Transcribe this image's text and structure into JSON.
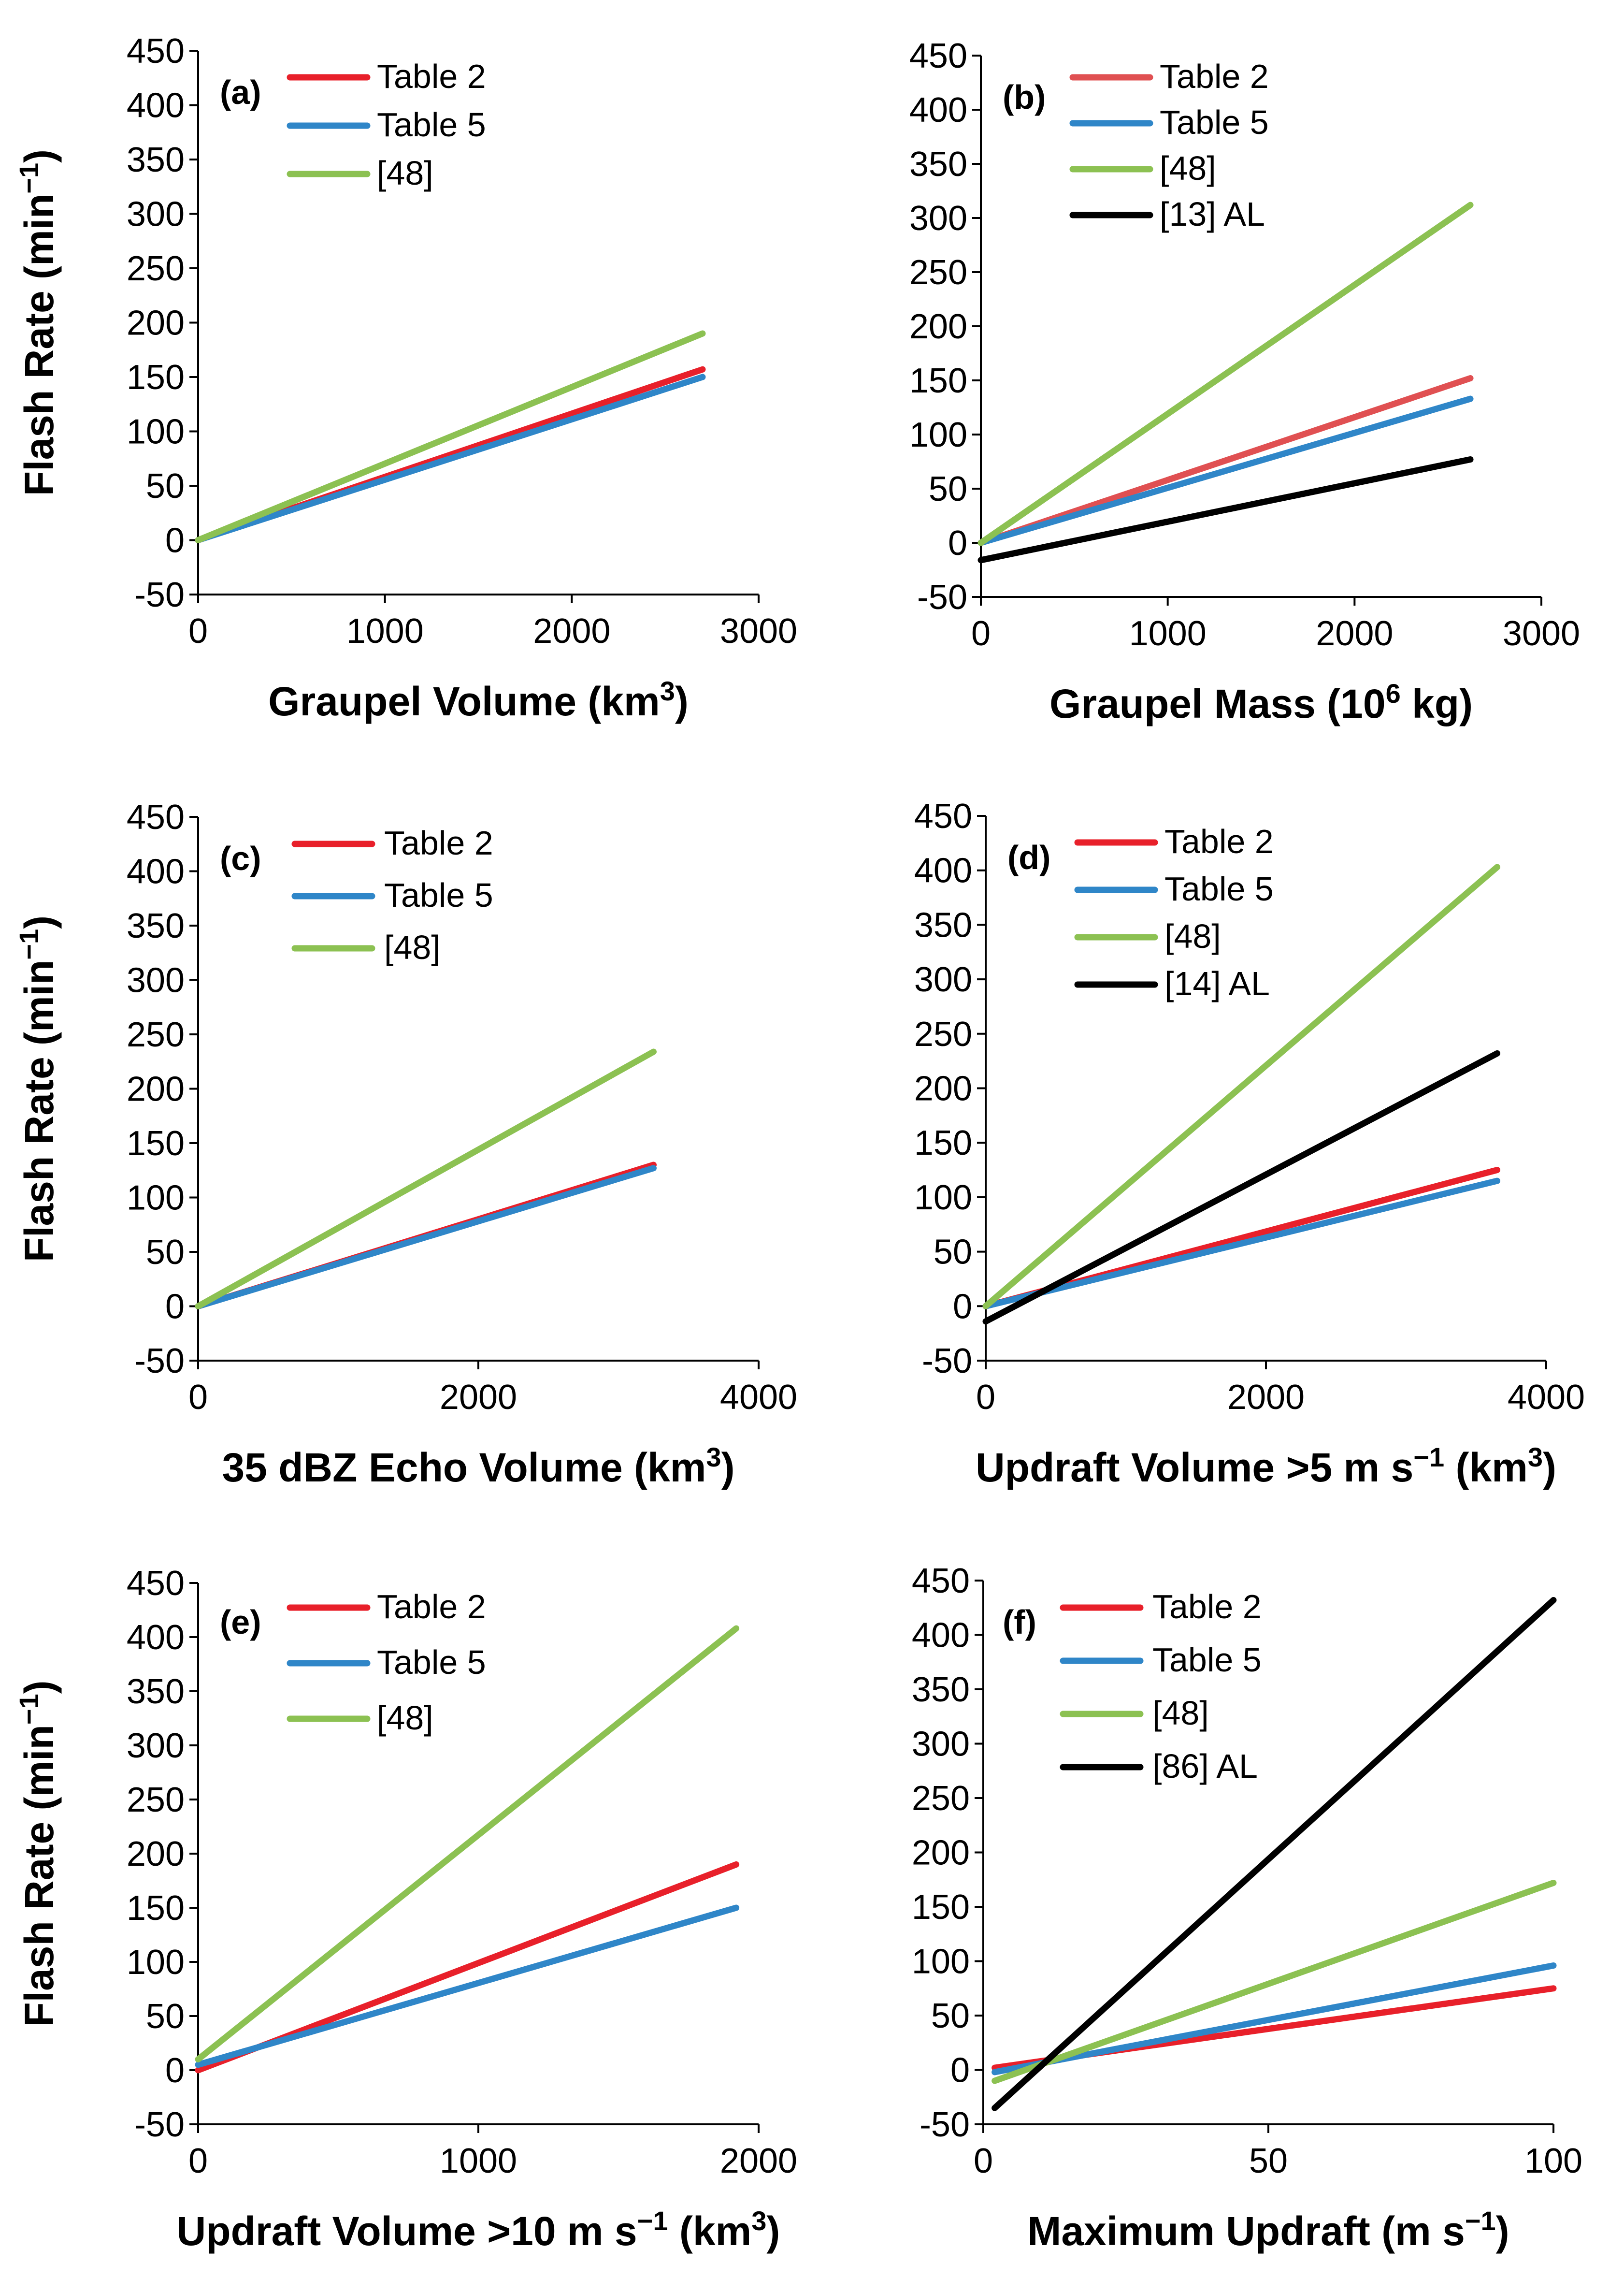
{
  "chart_data": [
    {
      "type": "line",
      "panel": "(a)",
      "title": "",
      "xlabel_main": "Graupel Volume (km",
      "xlabel_sup": "3",
      "xlabel_end": ")",
      "ylabel_main": "Flash Rate (min",
      "ylabel_sup": "−1",
      "ylabel_end": ")",
      "xlim": [
        0,
        3000
      ],
      "ylim": [
        -50,
        450
      ],
      "xticks": [
        0,
        1000,
        2000,
        3000
      ],
      "yticks": [
        -50,
        0,
        50,
        100,
        150,
        200,
        250,
        300,
        350,
        400,
        450
      ],
      "series": [
        {
          "name": "Table 2",
          "color": "#e8202a",
          "x": [
            0,
            2700
          ],
          "y": [
            0,
            157
          ]
        },
        {
          "name": "Table 5",
          "color": "#2f86c8",
          "x": [
            0,
            2700
          ],
          "y": [
            0,
            150
          ]
        },
        {
          "name": "[48]",
          "color": "#8cc152",
          "x": [
            0,
            2700
          ],
          "y": [
            0,
            190
          ]
        }
      ]
    },
    {
      "type": "line",
      "panel": "(b)",
      "title": "",
      "xlabel_main": "Graupel Mass (10",
      "xlabel_sup": "6",
      "xlabel_end": " kg)",
      "ylabel_main": "",
      "ylabel_sup": "",
      "ylabel_end": "",
      "xlim": [
        0,
        3000
      ],
      "ylim": [
        -50,
        450
      ],
      "xticks": [
        0,
        1000,
        2000,
        3000
      ],
      "yticks": [
        -50,
        0,
        50,
        100,
        150,
        200,
        250,
        300,
        350,
        400,
        450
      ],
      "series": [
        {
          "name": "Table 2",
          "color": "#e05052",
          "x": [
            0,
            2620
          ],
          "y": [
            0,
            152
          ]
        },
        {
          "name": "Table 5",
          "color": "#2f86c8",
          "x": [
            0,
            2620
          ],
          "y": [
            0,
            133
          ]
        },
        {
          "name": "[48]",
          "color": "#8cc152",
          "x": [
            0,
            2620
          ],
          "y": [
            0,
            312
          ]
        },
        {
          "name": "[13] AL",
          "color": "#000000",
          "x": [
            0,
            2620
          ],
          "y": [
            -16,
            77
          ]
        }
      ]
    },
    {
      "type": "line",
      "panel": "(c)",
      "title": "",
      "xlabel_main": "35 dBZ Echo Volume (km",
      "xlabel_sup": "3",
      "xlabel_end": ")",
      "ylabel_main": "Flash Rate (min",
      "ylabel_sup": "−1",
      "ylabel_end": ")",
      "xlim": [
        0,
        4000
      ],
      "ylim": [
        -50,
        450
      ],
      "xticks": [
        0,
        2000,
        4000
      ],
      "yticks": [
        -50,
        0,
        50,
        100,
        150,
        200,
        250,
        300,
        350,
        400,
        450
      ],
      "series": [
        {
          "name": "Table 2",
          "color": "#e8202a",
          "x": [
            0,
            3250
          ],
          "y": [
            0,
            130
          ]
        },
        {
          "name": "Table 5",
          "color": "#2f86c8",
          "x": [
            0,
            3250
          ],
          "y": [
            0,
            127
          ]
        },
        {
          "name": "[48]",
          "color": "#8cc152",
          "x": [
            0,
            3250
          ],
          "y": [
            0,
            234
          ]
        }
      ]
    },
    {
      "type": "line",
      "panel": "(d)",
      "title": "",
      "xlabel_main": "Updraft Volume >5 m s",
      "xlabel_sup": "−1",
      "xlabel_end": " (km",
      "xlabel_sup2": "3",
      "xlabel_end2": ")",
      "ylabel_main": "",
      "ylabel_sup": "",
      "ylabel_end": "",
      "xlim": [
        0,
        4000
      ],
      "ylim": [
        -50,
        450
      ],
      "xticks": [
        0,
        2000,
        4000
      ],
      "yticks": [
        -50,
        0,
        50,
        100,
        150,
        200,
        250,
        300,
        350,
        400,
        450
      ],
      "series": [
        {
          "name": "Table 2",
          "color": "#e8202a",
          "x": [
            0,
            3650
          ],
          "y": [
            0,
            125
          ]
        },
        {
          "name": "Table 5",
          "color": "#2f86c8",
          "x": [
            0,
            3650
          ],
          "y": [
            0,
            115
          ]
        },
        {
          "name": "[48]",
          "color": "#8cc152",
          "x": [
            0,
            3650
          ],
          "y": [
            0,
            403
          ]
        },
        {
          "name": "[14] AL",
          "color": "#000000",
          "x": [
            0,
            3650
          ],
          "y": [
            -14,
            232
          ]
        }
      ]
    },
    {
      "type": "line",
      "panel": "(e)",
      "title": "",
      "xlabel_main": "Updraft Volume >10 m s",
      "xlabel_sup": "−1",
      "xlabel_end": " (km",
      "xlabel_sup2": "3",
      "xlabel_end2": ")",
      "ylabel_main": "Flash Rate (min",
      "ylabel_sup": "−1",
      "ylabel_end": ")",
      "xlim": [
        0,
        2000
      ],
      "ylim": [
        -50,
        450
      ],
      "xticks": [
        0,
        1000,
        2000
      ],
      "yticks": [
        -50,
        0,
        50,
        100,
        150,
        200,
        250,
        300,
        350,
        400,
        450
      ],
      "series": [
        {
          "name": "Table 2",
          "color": "#e8202a",
          "x": [
            0,
            1920
          ],
          "y": [
            0,
            190
          ]
        },
        {
          "name": "Table 5",
          "color": "#2f86c8",
          "x": [
            0,
            1920
          ],
          "y": [
            5,
            150
          ]
        },
        {
          "name": "[48]",
          "color": "#8cc152",
          "x": [
            0,
            1920
          ],
          "y": [
            10,
            408
          ]
        }
      ]
    },
    {
      "type": "line",
      "panel": "(f)",
      "title": "",
      "xlabel_main": "Maximum Updraft (m s",
      "xlabel_sup": "−1",
      "xlabel_end": ")",
      "ylabel_main": "",
      "ylabel_sup": "",
      "ylabel_end": "",
      "xlim": [
        0,
        100
      ],
      "ylim": [
        -50,
        450
      ],
      "xticks": [
        0,
        50,
        100
      ],
      "yticks": [
        -50,
        0,
        50,
        100,
        150,
        200,
        250,
        300,
        350,
        400,
        450
      ],
      "series": [
        {
          "name": "Table 2",
          "color": "#e8202a",
          "x": [
            2,
            100
          ],
          "y": [
            2,
            75
          ]
        },
        {
          "name": "Table 5",
          "color": "#2f86c8",
          "x": [
            2,
            100
          ],
          "y": [
            -2,
            96
          ]
        },
        {
          "name": "[48]",
          "color": "#8cc152",
          "x": [
            2,
            100
          ],
          "y": [
            -10,
            172
          ]
        },
        {
          "name": "[86] AL",
          "color": "#000000",
          "x": [
            2,
            100
          ],
          "y": [
            -35,
            432
          ]
        }
      ]
    }
  ]
}
